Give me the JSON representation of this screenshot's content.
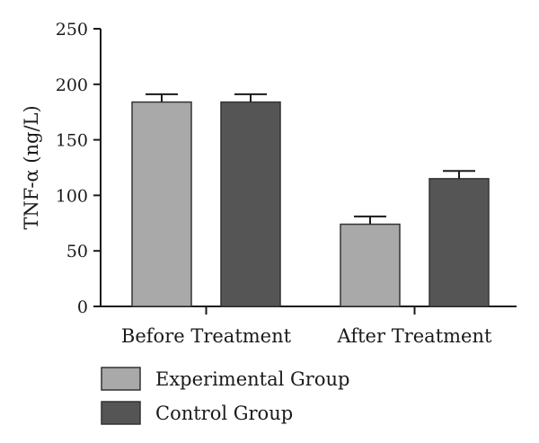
{
  "chart_data": {
    "type": "bar",
    "categories": [
      "Before Treatment",
      "After Treatment"
    ],
    "series": [
      {
        "name": "Experimental Group",
        "values": [
          184,
          74
        ],
        "errors": [
          7,
          7
        ],
        "color": "#a9a9a9"
      },
      {
        "name": "Control Group",
        "values": [
          184,
          115
        ],
        "errors": [
          7,
          7
        ],
        "color": "#555555"
      }
    ],
    "ylabel": "TNF-α (ng/L)",
    "xlabel": "",
    "ylim": [
      0,
      250
    ],
    "yticks": [
      "0",
      "50",
      "100",
      "150",
      "200",
      "250"
    ],
    "grid": false,
    "legend_position": "bottom-left",
    "bar_edge_color": "#333333",
    "axis_color": "#1a1a1a"
  }
}
